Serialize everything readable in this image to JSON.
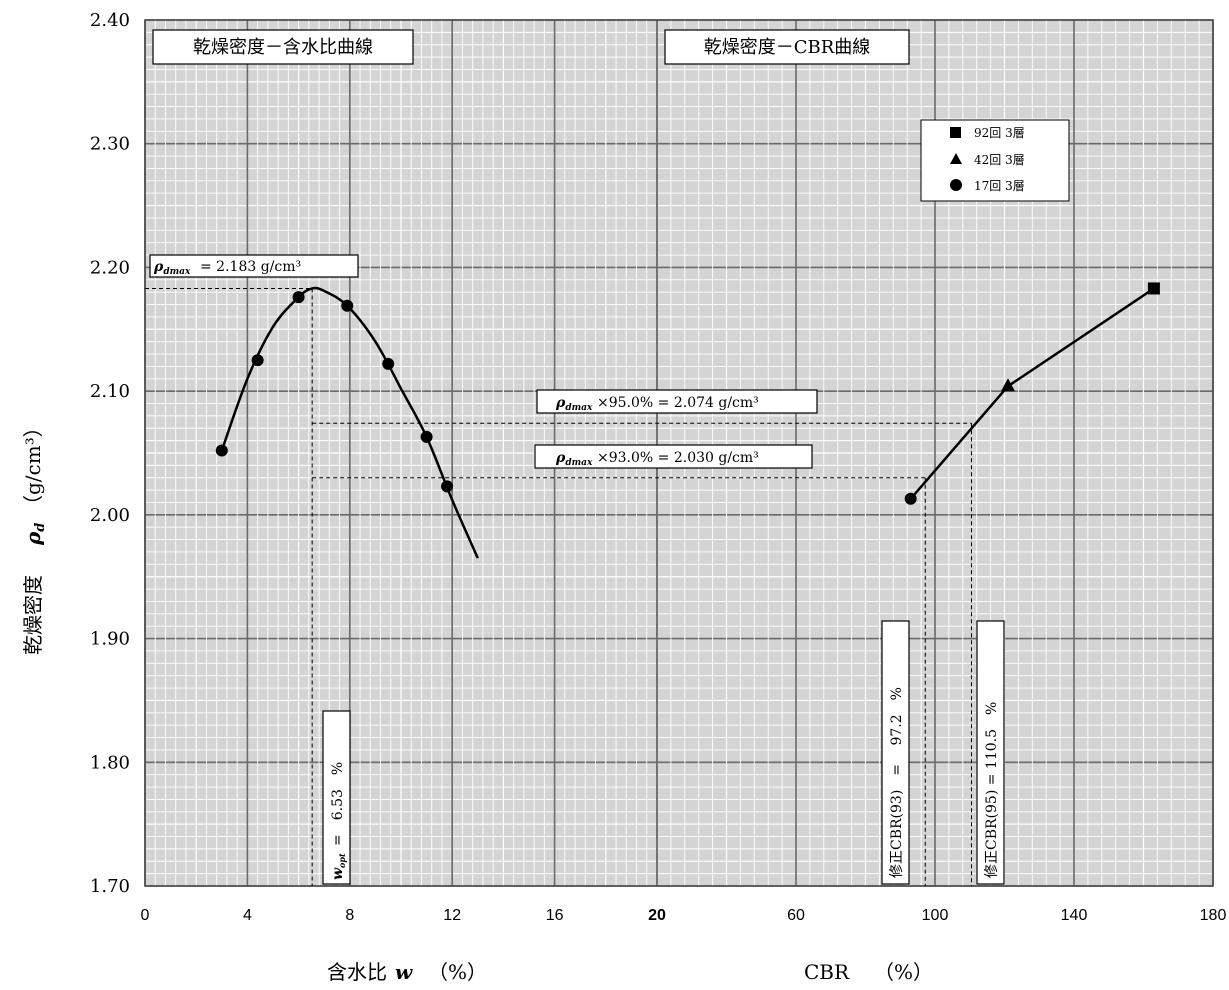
{
  "chart_data": [
    {
      "type": "line",
      "panel": "left",
      "title": "乾燥密度－含水比曲線",
      "xlabel": "含水比",
      "xlabel_symbol": "w",
      "xlabel_unit": "（%）",
      "ylabel": "乾燥密度",
      "ylabel_symbol": "ρd",
      "ylabel_unit": "（g/cm³）",
      "xlim": [
        0,
        20
      ],
      "ylim": [
        1.7,
        2.4
      ],
      "x_ticks": [
        "0",
        "4",
        "8",
        "12",
        "16",
        "20"
      ],
      "y_ticks": [
        "1.70",
        "1.80",
        "1.90",
        "2.00",
        "2.10",
        "2.20",
        "2.30",
        "2.40"
      ],
      "grid": true,
      "points": [
        {
          "x": 3.0,
          "y": 2.052
        },
        {
          "x": 4.4,
          "y": 2.125
        },
        {
          "x": 6.0,
          "y": 2.176
        },
        {
          "x": 7.9,
          "y": 2.169
        },
        {
          "x": 9.5,
          "y": 2.122
        },
        {
          "x": 11.0,
          "y": 2.063
        },
        {
          "x": 11.8,
          "y": 2.023
        }
      ],
      "curve": [
        {
          "x": 3.0,
          "y": 2.052
        },
        {
          "x": 4.0,
          "y": 2.11
        },
        {
          "x": 5.0,
          "y": 2.152
        },
        {
          "x": 6.0,
          "y": 2.176
        },
        {
          "x": 6.53,
          "y": 2.183
        },
        {
          "x": 7.0,
          "y": 2.181
        },
        {
          "x": 7.9,
          "y": 2.169
        },
        {
          "x": 9.0,
          "y": 2.14
        },
        {
          "x": 10.0,
          "y": 2.102
        },
        {
          "x": 11.0,
          "y": 2.063
        },
        {
          "x": 12.0,
          "y": 2.012
        },
        {
          "x": 13.0,
          "y": 1.965
        }
      ],
      "annotations": {
        "dmax_label": "= 2.183 g/cm³",
        "dmax_symbol": "ρdmax",
        "rho_dmax": 2.183,
        "w_opt_label": "=　6.53　%",
        "w_opt_symbol": "wopt",
        "w_opt": 6.53
      }
    },
    {
      "type": "line",
      "panel": "right",
      "title": "乾燥密度－CBR曲線",
      "xlabel": "CBR",
      "xlabel_unit": "（%）",
      "xlim": [
        20,
        180
      ],
      "ylim": [
        1.7,
        2.4
      ],
      "x_ticks": [
        "20",
        "60",
        "100",
        "140",
        "180"
      ],
      "grid": true,
      "series": [
        {
          "name": "92回 3層",
          "marker": "square",
          "x": 163,
          "y": 2.183
        },
        {
          "name": "42回 3層",
          "marker": "triangle",
          "x": 121,
          "y": 2.104
        },
        {
          "name": "17回 3層",
          "marker": "circle",
          "x": 93,
          "y": 2.013
        }
      ],
      "line": [
        {
          "x": 93,
          "y": 2.013
        },
        {
          "x": 121,
          "y": 2.104
        },
        {
          "x": 163,
          "y": 2.183
        }
      ],
      "legend": [
        {
          "marker": "square",
          "label": "92回 3層"
        },
        {
          "marker": "triangle",
          "label": "42回 3層"
        },
        {
          "marker": "circle",
          "label": "17回 3層"
        }
      ],
      "legend_position": "top-right",
      "annotations": {
        "p95_label": "×95.0% = 2.074 g/cm³",
        "p95_value": 2.074,
        "p93_label": "×93.0% = 2.030 g/cm³",
        "p93_value": 2.03,
        "cbr93_label": "修正CBR(93)　=　 97.2　%",
        "cbr93_value": 97.2,
        "cbr95_label": "修正CBR(95) = 110.5　%",
        "cbr95_value": 110.5
      }
    }
  ]
}
